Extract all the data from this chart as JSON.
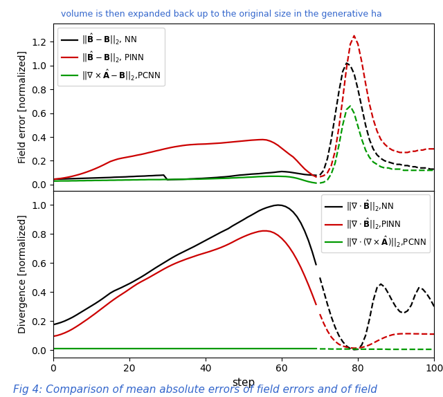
{
  "top_panel": {
    "ylabel": "Field error [normalized]",
    "ylim": [
      -0.05,
      1.35
    ],
    "yticks": [
      0.0,
      0.2,
      0.4,
      0.6,
      0.8,
      1.0,
      1.2
    ],
    "legend_labels": [
      "$||\\hat{\\mathbf{B}} - \\mathbf{B}||_2$, NN",
      "$||\\hat{\\mathbf{B}} - \\mathbf{B}||_2$, PINN",
      "$||\\nabla \\times \\hat{\\mathbf{A}} - \\mathbf{B}||_2$,PCNN"
    ]
  },
  "bottom_panel": {
    "ylabel": "Divergence [normalized]",
    "ylim": [
      -0.05,
      1.1
    ],
    "yticks": [
      0.0,
      0.2,
      0.4,
      0.6,
      0.8,
      1.0
    ],
    "legend_labels": [
      "$||\\nabla \\cdot \\hat{\\mathbf{B}}||_2$,NN",
      "$||\\nabla \\cdot \\hat{\\mathbf{B}}||_2$,PINN",
      "$||\\nabla \\cdot (\\nabla \\times \\hat{\\mathbf{A}})||_2$,PCNN"
    ]
  },
  "xlabel": "step",
  "xlim": [
    0,
    100
  ],
  "xticks": [
    0,
    20,
    40,
    60,
    80,
    100
  ],
  "colors": {
    "black": "#000000",
    "red": "#cc0000",
    "green": "#009900"
  },
  "title_text": "Fig 4: Comparison of mean absolute errors of field errors and of field",
  "title_fontsize": 11,
  "header_text": "volume is then expanded back up to the original size in the generative ha",
  "solid_cutoff": 70,
  "top_nn_solid": [
    0.045,
    0.046,
    0.047,
    0.048,
    0.049,
    0.05,
    0.051,
    0.052,
    0.053,
    0.054,
    0.055,
    0.056,
    0.057,
    0.058,
    0.059,
    0.06,
    0.062,
    0.063,
    0.064,
    0.065,
    0.067,
    0.068,
    0.07,
    0.071,
    0.072,
    0.074,
    0.075,
    0.077,
    0.078,
    0.08,
    0.04,
    0.042,
    0.043,
    0.044,
    0.045,
    0.046,
    0.048,
    0.049,
    0.051,
    0.052,
    0.054,
    0.056,
    0.058,
    0.06,
    0.063,
    0.065,
    0.068,
    0.072,
    0.076,
    0.08,
    0.082,
    0.085,
    0.088,
    0.09,
    0.092,
    0.095,
    0.098,
    0.1,
    0.103,
    0.107,
    0.11,
    0.108,
    0.105,
    0.1,
    0.095,
    0.09,
    0.085,
    0.082,
    0.08,
    0.078
  ],
  "top_nn_dashed": [
    0.08,
    0.12,
    0.22,
    0.38,
    0.58,
    0.78,
    0.95,
    1.02,
    1.0,
    0.93,
    0.8,
    0.65,
    0.5,
    0.38,
    0.3,
    0.25,
    0.22,
    0.2,
    0.19,
    0.18,
    0.17,
    0.17,
    0.16,
    0.16,
    0.15,
    0.15,
    0.14,
    0.14,
    0.14,
    0.13,
    0.13
  ],
  "top_pinn_solid": [
    0.045,
    0.048,
    0.052,
    0.057,
    0.063,
    0.07,
    0.078,
    0.087,
    0.097,
    0.108,
    0.12,
    0.133,
    0.147,
    0.162,
    0.178,
    0.194,
    0.205,
    0.215,
    0.222,
    0.228,
    0.234,
    0.24,
    0.247,
    0.253,
    0.26,
    0.268,
    0.275,
    0.283,
    0.29,
    0.298,
    0.305,
    0.312,
    0.318,
    0.323,
    0.328,
    0.332,
    0.335,
    0.337,
    0.339,
    0.34,
    0.341,
    0.343,
    0.345,
    0.347,
    0.349,
    0.352,
    0.355,
    0.358,
    0.361,
    0.364,
    0.367,
    0.37,
    0.373,
    0.375,
    0.377,
    0.378,
    0.375,
    0.365,
    0.35,
    0.33,
    0.305,
    0.28,
    0.255,
    0.232,
    0.2,
    0.165,
    0.132,
    0.105,
    0.082,
    0.065
  ],
  "top_pinn_dashed": [
    0.065,
    0.075,
    0.1,
    0.16,
    0.28,
    0.48,
    0.72,
    0.98,
    1.18,
    1.25,
    1.18,
    1.03,
    0.85,
    0.68,
    0.55,
    0.45,
    0.38,
    0.34,
    0.31,
    0.29,
    0.28,
    0.27,
    0.27,
    0.27,
    0.28,
    0.28,
    0.29,
    0.29,
    0.3,
    0.3,
    0.3
  ],
  "top_pcnn_solid": [
    0.03,
    0.03,
    0.031,
    0.031,
    0.031,
    0.032,
    0.032,
    0.033,
    0.033,
    0.034,
    0.034,
    0.035,
    0.035,
    0.036,
    0.036,
    0.037,
    0.037,
    0.038,
    0.038,
    0.039,
    0.039,
    0.04,
    0.04,
    0.041,
    0.041,
    0.042,
    0.042,
    0.042,
    0.042,
    0.043,
    0.043,
    0.043,
    0.044,
    0.044,
    0.044,
    0.045,
    0.045,
    0.046,
    0.046,
    0.047,
    0.048,
    0.049,
    0.05,
    0.051,
    0.052,
    0.053,
    0.054,
    0.056,
    0.057,
    0.059,
    0.06,
    0.062,
    0.063,
    0.065,
    0.067,
    0.068,
    0.069,
    0.07,
    0.07,
    0.07,
    0.069,
    0.068,
    0.065,
    0.06,
    0.053,
    0.044,
    0.034,
    0.025,
    0.018,
    0.013
  ],
  "top_pcnn_dashed": [
    0.013,
    0.02,
    0.04,
    0.09,
    0.18,
    0.33,
    0.5,
    0.63,
    0.66,
    0.6,
    0.49,
    0.38,
    0.29,
    0.23,
    0.19,
    0.17,
    0.15,
    0.14,
    0.14,
    0.13,
    0.13,
    0.13,
    0.12,
    0.12,
    0.12,
    0.12,
    0.12,
    0.12,
    0.12,
    0.12,
    0.12
  ],
  "bot_nn_solid": [
    0.175,
    0.182,
    0.19,
    0.2,
    0.212,
    0.225,
    0.24,
    0.256,
    0.272,
    0.288,
    0.304,
    0.32,
    0.337,
    0.355,
    0.374,
    0.393,
    0.408,
    0.42,
    0.432,
    0.445,
    0.458,
    0.472,
    0.487,
    0.502,
    0.518,
    0.535,
    0.552,
    0.569,
    0.585,
    0.601,
    0.617,
    0.633,
    0.648,
    0.662,
    0.675,
    0.688,
    0.701,
    0.714,
    0.728,
    0.742,
    0.756,
    0.77,
    0.784,
    0.798,
    0.812,
    0.825,
    0.838,
    0.855,
    0.87,
    0.885,
    0.9,
    0.916,
    0.93,
    0.945,
    0.96,
    0.972,
    0.982,
    0.99,
    0.997,
    1.0,
    0.998,
    0.99,
    0.975,
    0.952,
    0.92,
    0.877,
    0.822,
    0.756,
    0.678,
    0.59
  ],
  "bot_nn_dashed": [
    0.5,
    0.408,
    0.315,
    0.23,
    0.158,
    0.1,
    0.058,
    0.028,
    0.01,
    0.003,
    0.005,
    0.035,
    0.1,
    0.21,
    0.34,
    0.43,
    0.455,
    0.435,
    0.39,
    0.34,
    0.295,
    0.265,
    0.255,
    0.27,
    0.31,
    0.38,
    0.43,
    0.42,
    0.39,
    0.35,
    0.3
  ],
  "bot_pinn_solid": [
    0.095,
    0.1,
    0.108,
    0.118,
    0.13,
    0.144,
    0.16,
    0.177,
    0.195,
    0.213,
    0.232,
    0.251,
    0.271,
    0.291,
    0.311,
    0.331,
    0.35,
    0.368,
    0.385,
    0.402,
    0.42,
    0.438,
    0.455,
    0.47,
    0.484,
    0.498,
    0.513,
    0.528,
    0.543,
    0.558,
    0.572,
    0.585,
    0.597,
    0.608,
    0.618,
    0.628,
    0.637,
    0.646,
    0.655,
    0.663,
    0.671,
    0.679,
    0.688,
    0.697,
    0.707,
    0.718,
    0.73,
    0.743,
    0.757,
    0.77,
    0.782,
    0.793,
    0.803,
    0.811,
    0.818,
    0.822,
    0.822,
    0.818,
    0.808,
    0.792,
    0.77,
    0.742,
    0.708,
    0.668,
    0.622,
    0.57,
    0.512,
    0.45,
    0.384,
    0.315
  ],
  "bot_pinn_dashed": [
    0.248,
    0.185,
    0.132,
    0.09,
    0.06,
    0.04,
    0.028,
    0.02,
    0.015,
    0.013,
    0.014,
    0.018,
    0.025,
    0.035,
    0.048,
    0.062,
    0.075,
    0.087,
    0.097,
    0.105,
    0.11,
    0.112,
    0.113,
    0.113,
    0.113,
    0.112,
    0.112,
    0.111,
    0.111,
    0.11,
    0.11
  ],
  "bot_pcnn_solid": [
    0.008,
    0.008,
    0.008,
    0.008,
    0.008,
    0.008,
    0.008,
    0.008,
    0.008,
    0.008,
    0.008,
    0.008,
    0.008,
    0.008,
    0.008,
    0.008,
    0.008,
    0.008,
    0.008,
    0.008,
    0.008,
    0.008,
    0.008,
    0.008,
    0.008,
    0.008,
    0.008,
    0.008,
    0.008,
    0.008,
    0.008,
    0.008,
    0.008,
    0.008,
    0.008,
    0.008,
    0.008,
    0.008,
    0.008,
    0.008,
    0.008,
    0.008,
    0.008,
    0.008,
    0.008,
    0.008,
    0.008,
    0.008,
    0.008,
    0.008,
    0.008,
    0.008,
    0.008,
    0.008,
    0.008,
    0.008,
    0.008,
    0.008,
    0.008,
    0.008,
    0.008,
    0.008,
    0.008,
    0.008,
    0.008,
    0.008,
    0.008,
    0.008,
    0.008,
    0.008
  ],
  "bot_pcnn_dashed": [
    0.008,
    0.008,
    0.008,
    0.007,
    0.007,
    0.007,
    0.007,
    0.007,
    0.007,
    0.007,
    0.006,
    0.006,
    0.006,
    0.006,
    0.006,
    0.006,
    0.006,
    0.006,
    0.005,
    0.005,
    0.005,
    0.005,
    0.005,
    0.005,
    0.005,
    0.005,
    0.005,
    0.005,
    0.005,
    0.005,
    0.005
  ]
}
